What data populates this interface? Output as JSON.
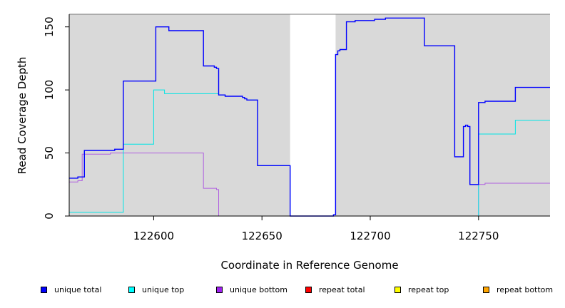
{
  "chart_data": {
    "type": "line",
    "xlabel": "Coordinate in Reference Genome",
    "ylabel": "Read Coverage Depth",
    "xlim": [
      122561,
      122783
    ],
    "ylim": [
      0,
      160
    ],
    "xticks": [
      122600,
      122650,
      122700,
      122750
    ],
    "xtick_labels": [
      "122600",
      "122650",
      "122700",
      "122750"
    ],
    "yticks": [
      0,
      50,
      100,
      150
    ],
    "ytick_labels": [
      "0",
      "50",
      "100",
      "150"
    ],
    "plot_background": "#d9d9d9",
    "gaps": [
      [
        122663,
        122684
      ]
    ],
    "series": [
      {
        "name": "unique total",
        "color": "#0000ff",
        "swatch": "#0000ff",
        "points": [
          [
            122561,
            30
          ],
          [
            122565,
            30
          ],
          [
            122565,
            31
          ],
          [
            122568,
            31
          ],
          [
            122568,
            52
          ],
          [
            122582,
            52
          ],
          [
            122582,
            53
          ],
          [
            122586,
            53
          ],
          [
            122586,
            107
          ],
          [
            122601,
            107
          ],
          [
            122601,
            150
          ],
          [
            122607,
            150
          ],
          [
            122607,
            147
          ],
          [
            122623,
            147
          ],
          [
            122623,
            119
          ],
          [
            122628,
            119
          ],
          [
            122628,
            118
          ],
          [
            122629,
            118
          ],
          [
            122629,
            117
          ],
          [
            122630,
            117
          ],
          [
            122630,
            96
          ],
          [
            122633,
            96
          ],
          [
            122633,
            95
          ],
          [
            122641,
            95
          ],
          [
            122641,
            94
          ],
          [
            122642,
            94
          ],
          [
            122642,
            93
          ],
          [
            122643,
            93
          ],
          [
            122643,
            92
          ],
          [
            122648,
            92
          ],
          [
            122648,
            40
          ],
          [
            122663,
            40
          ],
          [
            122663,
            0
          ],
          [
            122683,
            0
          ],
          [
            122683,
            1
          ],
          [
            122684,
            1
          ],
          [
            122684,
            128
          ],
          [
            122685,
            128
          ],
          [
            122685,
            131
          ],
          [
            122686,
            131
          ],
          [
            122686,
            132
          ],
          [
            122689,
            132
          ],
          [
            122689,
            154
          ],
          [
            122693,
            154
          ],
          [
            122693,
            155
          ],
          [
            122702,
            155
          ],
          [
            122702,
            156
          ],
          [
            122707,
            156
          ],
          [
            122707,
            157
          ],
          [
            122725,
            157
          ],
          [
            122725,
            135
          ],
          [
            122739,
            135
          ],
          [
            122739,
            47
          ],
          [
            122743,
            47
          ],
          [
            122743,
            71
          ],
          [
            122744,
            71
          ],
          [
            122744,
            72
          ],
          [
            122745,
            72
          ],
          [
            122745,
            71
          ],
          [
            122746,
            71
          ],
          [
            122746,
            25
          ],
          [
            122750,
            25
          ],
          [
            122750,
            90
          ],
          [
            122753,
            90
          ],
          [
            122753,
            91
          ],
          [
            122767,
            91
          ],
          [
            122767,
            102
          ],
          [
            122783,
            102
          ]
        ]
      },
      {
        "name": "unique top",
        "color": "#00e5e5",
        "swatch": "#00ffff",
        "points": [
          [
            122561,
            3
          ],
          [
            122586,
            3
          ],
          [
            122586,
            57
          ],
          [
            122600,
            57
          ],
          [
            122600,
            100
          ],
          [
            122605,
            100
          ],
          [
            122605,
            97
          ],
          [
            122630,
            97
          ],
          [
            122630,
            96
          ],
          [
            122633,
            96
          ],
          [
            122633,
            95
          ],
          [
            122641,
            95
          ],
          [
            122641,
            94
          ],
          [
            122642,
            94
          ],
          [
            122642,
            93
          ],
          [
            122643,
            93
          ],
          [
            122643,
            92
          ],
          [
            122648,
            92
          ],
          [
            122648,
            40
          ],
          [
            122663,
            40
          ],
          [
            122663,
            0
          ],
          [
            122750,
            0
          ],
          [
            122750,
            65
          ],
          [
            122767,
            65
          ],
          [
            122767,
            76
          ],
          [
            122783,
            76
          ]
        ]
      },
      {
        "name": "unique bottom",
        "color": "#b060e0",
        "swatch": "#a020f0",
        "points": [
          [
            122561,
            27
          ],
          [
            122565,
            27
          ],
          [
            122565,
            28
          ],
          [
            122567,
            28
          ],
          [
            122567,
            49
          ],
          [
            122580,
            49
          ],
          [
            122580,
            50
          ],
          [
            122623,
            50
          ],
          [
            122623,
            22
          ],
          [
            122629,
            22
          ],
          [
            122629,
            21
          ],
          [
            122630,
            21
          ],
          [
            122630,
            0
          ],
          [
            122750,
            0
          ],
          [
            122750,
            25
          ],
          [
            122753,
            25
          ],
          [
            122753,
            26
          ],
          [
            122783,
            26
          ]
        ]
      },
      {
        "name": "repeat total",
        "color": "#ff0000",
        "swatch": "#ff0000",
        "points": [
          [
            122561,
            0
          ],
          [
            122783,
            0
          ]
        ]
      },
      {
        "name": "repeat top",
        "color": "#ffff00",
        "swatch": "#ffff00",
        "points": [
          [
            122561,
            0
          ],
          [
            122783,
            0
          ]
        ]
      },
      {
        "name": "repeat bottom",
        "color": "#ffa500",
        "swatch": "#ffa500",
        "points": [
          [
            122561,
            0
          ],
          [
            122783,
            0
          ]
        ]
      }
    ]
  }
}
